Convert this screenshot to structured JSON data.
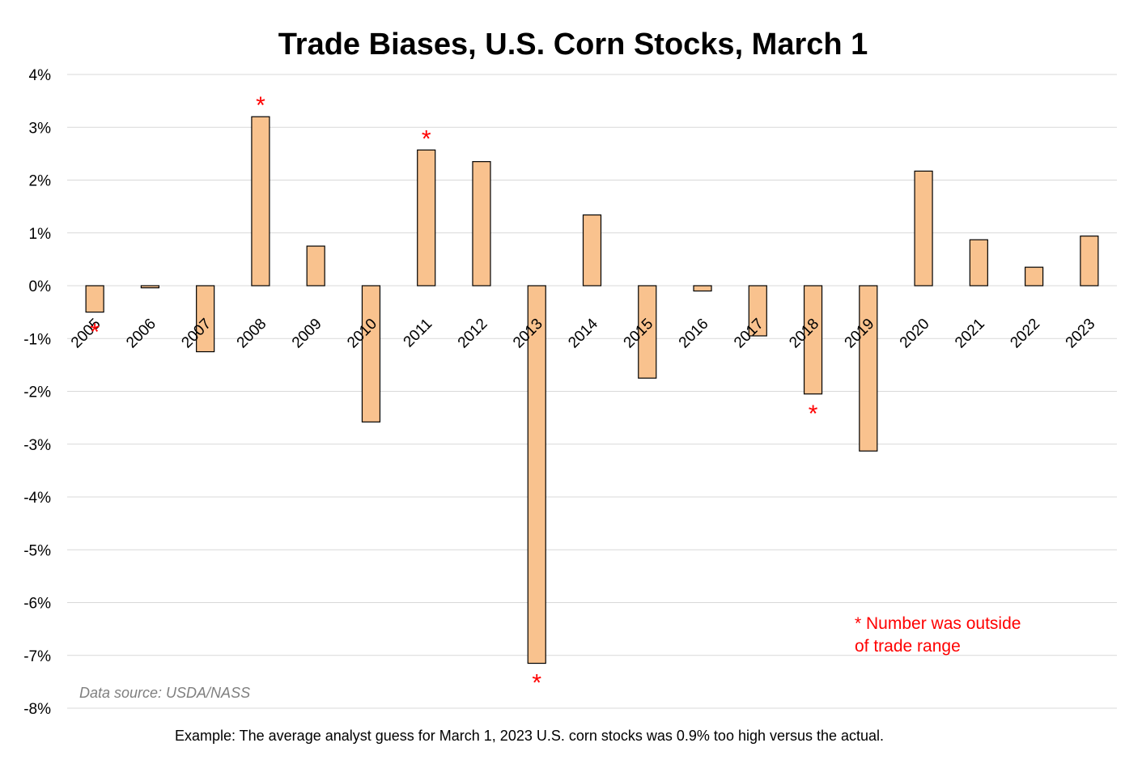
{
  "chart_data": {
    "type": "bar",
    "title": "Trade Biases, U.S. Corn Stocks, March 1",
    "xlabel": "",
    "ylabel": "",
    "ylim": [
      -8,
      4
    ],
    "y_ticks": [
      4,
      3,
      2,
      1,
      0,
      -1,
      -2,
      -3,
      -4,
      -5,
      -6,
      -7,
      -8
    ],
    "y_tick_labels": [
      "4%",
      "3%",
      "2%",
      "1%",
      "0%",
      "-1%",
      "-2%",
      "-3%",
      "-4%",
      "-5%",
      "-6%",
      "-7%",
      "-8%"
    ],
    "grid": true,
    "categories": [
      "2005",
      "2006",
      "2007",
      "2008",
      "2009",
      "2010",
      "2011",
      "2012",
      "2013",
      "2014",
      "2015",
      "2016",
      "2017",
      "2018",
      "2019",
      "2020",
      "2021",
      "2022",
      "2023"
    ],
    "values": [
      -0.5,
      -0.04,
      -1.25,
      3.2,
      0.75,
      -2.58,
      2.57,
      2.35,
      -7.15,
      1.34,
      -1.75,
      -0.1,
      -0.95,
      -2.05,
      -3.13,
      2.17,
      0.87,
      0.35,
      0.94
    ],
    "outside_trade_range": [
      "2005",
      "2008",
      "2011",
      "2013",
      "2018"
    ],
    "marker_symbol": "*",
    "bar_fill": "#f9c28e",
    "bar_stroke": "#000000",
    "marker_color": "#ff0000",
    "grid_color": "#d9d9d9"
  },
  "annotations": {
    "legend_line1": "* Number was outside",
    "legend_line2": "of trade range",
    "source": "Data source: USDA/NASS",
    "footnote": "Example: The average analyst guess for March 1, 2023 U.S. corn stocks was 0.9% too high versus the actual."
  }
}
